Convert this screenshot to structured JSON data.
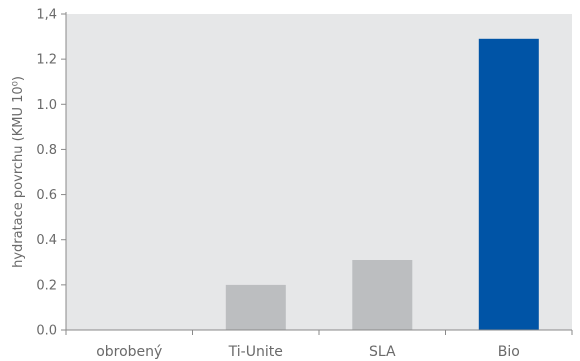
{
  "chart_data": {
    "type": "bar",
    "title": "",
    "xlabel": "",
    "ylabel": "hydratace povrchu (KMU 10⁰)",
    "categories": [
      "obrobený",
      "Ti-Unite",
      "SLA",
      "Bio"
    ],
    "values": [
      0,
      0.2,
      0.31,
      1.29
    ],
    "ylim": [
      0,
      1.4
    ],
    "yticks": [
      0.0,
      0.2,
      0.4,
      0.6,
      0.8,
      1.0,
      1.2,
      1.4
    ],
    "ytick_labels": [
      "0.0",
      "0.2",
      "0.4",
      "0.6",
      "0.8",
      "1.0",
      "1.2",
      "1,4"
    ],
    "grid": false,
    "colors": {
      "plot_background": "#e6e7e8",
      "bar_default": "#bcbec0",
      "bar_highlight": "#0054a6",
      "axis": "#8a8a8a",
      "text": "#6a6a6a"
    },
    "highlight_category": "Bio"
  }
}
